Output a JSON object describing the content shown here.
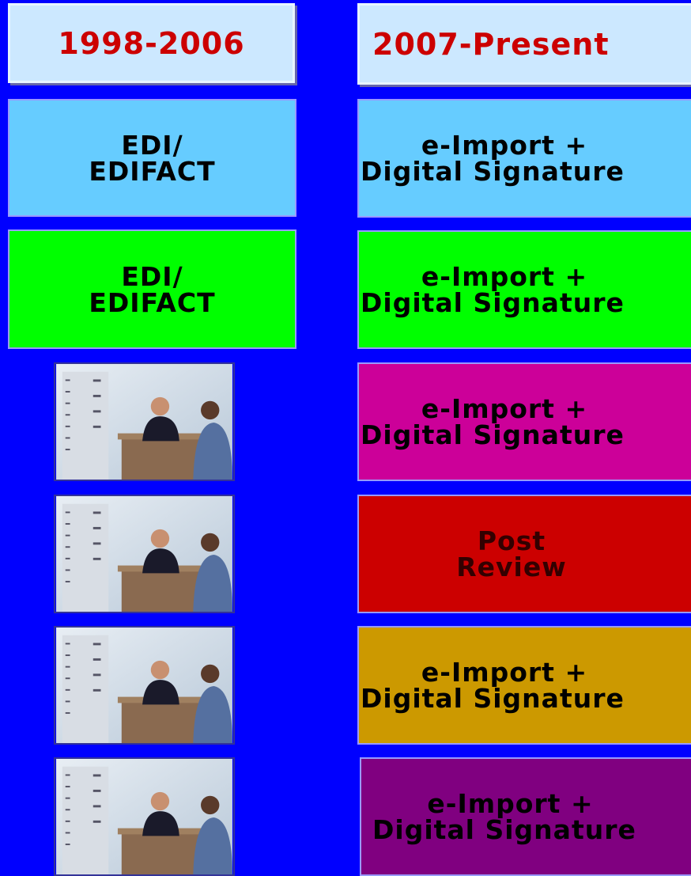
{
  "headers": [
    "1998-2006",
    "2007-Present"
  ],
  "left": [
    [
      "EDI/",
      "EDIFACT"
    ],
    [
      "EDI/",
      "EDIFACT"
    ]
  ],
  "right": [
    [
      "e-Import +",
      "Digital Signature"
    ],
    [
      "e-Import +",
      "Digital Signature"
    ],
    [
      "e-Import +",
      "Digital Signature"
    ],
    [
      "Post",
      "Review"
    ],
    [
      "e-Import +",
      "Digital Signature"
    ],
    [
      "e-Import +",
      "Digital Signature"
    ]
  ]
}
